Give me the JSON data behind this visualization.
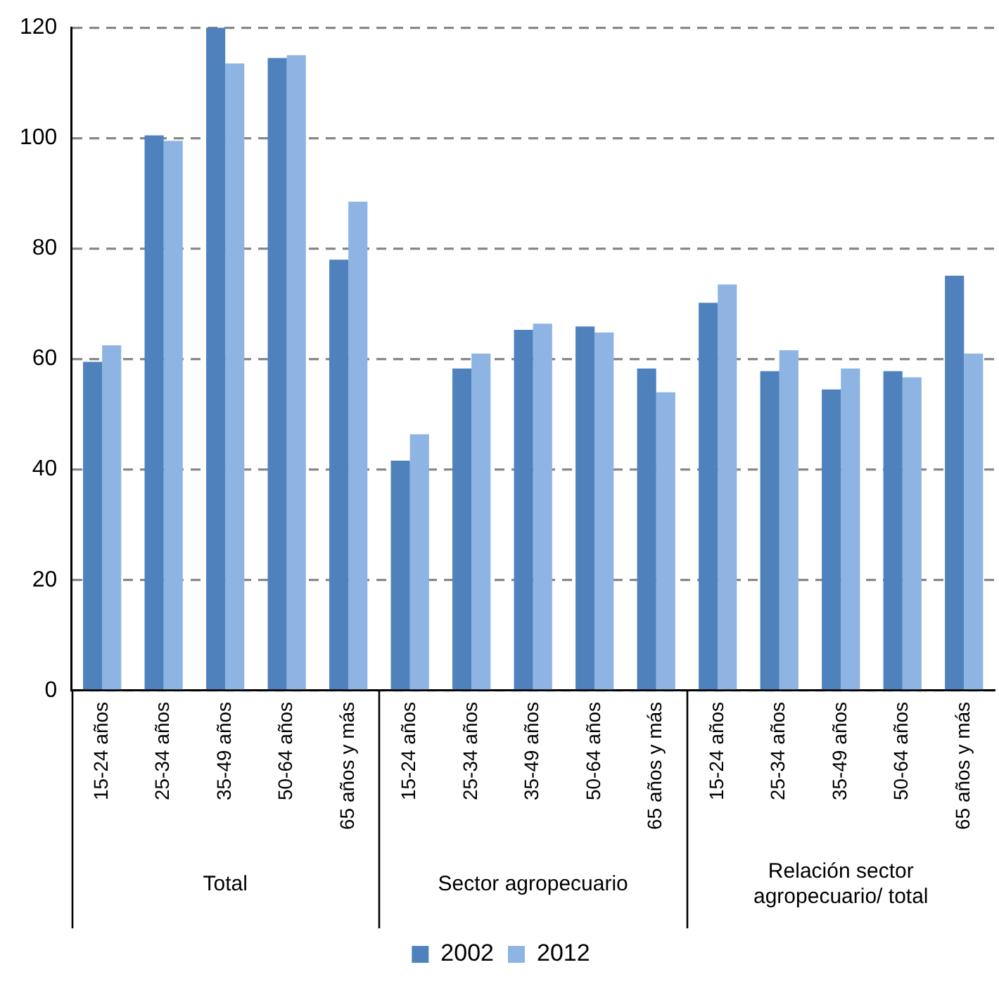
{
  "chart_data": {
    "type": "bar",
    "categories": [
      "15-24 años",
      "25-34 años",
      "35-49 años",
      "50-64 años",
      "65 años y más",
      "15-24 años",
      "25-34 años",
      "35-49 años",
      "50-64 años",
      "65 años y más",
      "15-24 años",
      "25-34 años",
      "35-49 años",
      "50-64 años",
      "65 años y más"
    ],
    "series": [
      {
        "name": "2002",
        "color": "#4f81bd",
        "values": [
          59.5,
          100.5,
          120,
          114.5,
          78,
          41.6,
          58.3,
          65.3,
          65.9,
          58.3,
          70.2,
          57.8,
          54.5,
          57.8,
          75.1
        ]
      },
      {
        "name": "2012",
        "color": "#8eb4e3",
        "values": [
          62.5,
          99.5,
          113.5,
          115,
          88.5,
          46.4,
          61,
          66.4,
          64.8,
          54,
          73.5,
          61.6,
          58.3,
          56.7,
          61
        ]
      }
    ],
    "annotations": [
      "Total",
      "Sector agropecuario",
      "Relación sector agropecuario/ total"
    ],
    "ylim": [
      0,
      120
    ],
    "yticks": [
      0,
      20,
      40,
      60,
      80,
      100,
      120
    ],
    "grid": "y",
    "legend": "bottom"
  }
}
